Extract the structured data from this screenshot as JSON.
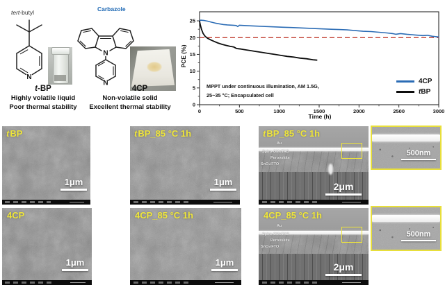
{
  "molecules": {
    "left": {
      "title_italic": "tert",
      "title_rest": "-butyl",
      "name_italic": "t",
      "name_rest": "-BP",
      "atom": "N",
      "caption_line1": "Highly volatile liquid",
      "caption_line2": "Poor thermal stability"
    },
    "right": {
      "title": "Carbazole",
      "title_color": "#1a66b3",
      "name": "4CP",
      "atom_top": "N",
      "atom_bottom": "N",
      "caption_line1": "Non-volatile solid",
      "caption_line2": "Excellent thermal stability"
    }
  },
  "chart_data": {
    "type": "line",
    "xlabel": "Time (h)",
    "ylabel": "PCE (%)",
    "xlim": [
      0,
      3000
    ],
    "ylim": [
      0,
      27.7
    ],
    "x_ticks": [
      0,
      500,
      1000,
      1500,
      2000,
      2500,
      3000
    ],
    "y_ticks": [
      0,
      5,
      10,
      15,
      20,
      25
    ],
    "grid": false,
    "legend_position": "lower right",
    "note_line1": "MPPT under continuous illumination, AM 1.5G,",
    "note_line2": "25~35 °C; Encapsulated cell",
    "ref_line": {
      "y": 20,
      "color": "#c4483c",
      "style": "dashed"
    },
    "series": [
      {
        "name": "4CP",
        "label_italic": "",
        "label_rest": "4CP",
        "color": "#2b6cb5",
        "width": 1.6,
        "points": [
          [
            0,
            25.0
          ],
          [
            15,
            25.2
          ],
          [
            60,
            25.1
          ],
          [
            100,
            24.9
          ],
          [
            150,
            24.6
          ],
          [
            200,
            24.3
          ],
          [
            250,
            24.1
          ],
          [
            300,
            23.9
          ],
          [
            350,
            23.8
          ],
          [
            420,
            23.7
          ],
          [
            460,
            23.6
          ],
          [
            480,
            23.3
          ],
          [
            500,
            23.7
          ],
          [
            560,
            23.6
          ],
          [
            650,
            23.5
          ],
          [
            750,
            23.4
          ],
          [
            850,
            23.3
          ],
          [
            950,
            23.2
          ],
          [
            1050,
            23.1
          ],
          [
            1150,
            23.0
          ],
          [
            1250,
            22.9
          ],
          [
            1350,
            22.8
          ],
          [
            1450,
            22.7
          ],
          [
            1550,
            22.6
          ],
          [
            1650,
            22.5
          ],
          [
            1750,
            22.4
          ],
          [
            1850,
            22.3
          ],
          [
            1950,
            22.1
          ],
          [
            2050,
            21.9
          ],
          [
            2150,
            21.8
          ],
          [
            2250,
            21.6
          ],
          [
            2350,
            21.4
          ],
          [
            2420,
            21.2
          ],
          [
            2460,
            21.0
          ],
          [
            2520,
            21.2
          ],
          [
            2600,
            21.0
          ],
          [
            2700,
            20.8
          ],
          [
            2800,
            20.6
          ],
          [
            2860,
            20.7
          ],
          [
            2920,
            20.4
          ],
          [
            3000,
            20.2
          ]
        ]
      },
      {
        "name": "tBP",
        "label_italic": "t",
        "label_rest": "BP",
        "color": "#0d0d0d",
        "width": 1.8,
        "points": [
          [
            0,
            24.9
          ],
          [
            10,
            23.8
          ],
          [
            25,
            22.4
          ],
          [
            45,
            21.2
          ],
          [
            70,
            20.4
          ],
          [
            100,
            19.8
          ],
          [
            140,
            19.3
          ],
          [
            180,
            18.9
          ],
          [
            230,
            18.4
          ],
          [
            280,
            18.0
          ],
          [
            330,
            17.7
          ],
          [
            380,
            17.4
          ],
          [
            430,
            17.2
          ],
          [
            460,
            16.8
          ],
          [
            480,
            16.7
          ],
          [
            520,
            16.6
          ],
          [
            570,
            16.4
          ],
          [
            620,
            16.2
          ],
          [
            700,
            15.9
          ],
          [
            780,
            15.6
          ],
          [
            860,
            15.3
          ],
          [
            940,
            15.0
          ],
          [
            1020,
            14.7
          ],
          [
            1100,
            14.4
          ],
          [
            1180,
            14.2
          ],
          [
            1260,
            13.9
          ],
          [
            1340,
            13.7
          ],
          [
            1420,
            13.4
          ],
          [
            1470,
            13.3
          ]
        ]
      }
    ]
  },
  "sem": {
    "layers": [
      "Au",
      "Spiro-OMeTAD",
      "Perovskite",
      "SnO₂/FTO"
    ],
    "panels": [
      {
        "label_italic": "t",
        "label_rest": "BP",
        "scale_label": "1μm"
      },
      {
        "label_italic": "t",
        "label_rest": "BP_85 °C 1h",
        "scale_label": "1μm"
      },
      {
        "label_italic": "t",
        "label_rest": "BP_85 °C 1h",
        "scale_label": "2μm",
        "inset_scale_label": "500nm"
      },
      {
        "label_italic": "",
        "label_rest": "4CP",
        "scale_label": "1μm"
      },
      {
        "label_italic": "",
        "label_rest": "4CP_85 °C 1h",
        "scale_label": "1μm"
      },
      {
        "label_italic": "",
        "label_rest": "4CP_85 °C 1h",
        "scale_label": "2μm",
        "inset_scale_label": "500nm"
      }
    ]
  }
}
